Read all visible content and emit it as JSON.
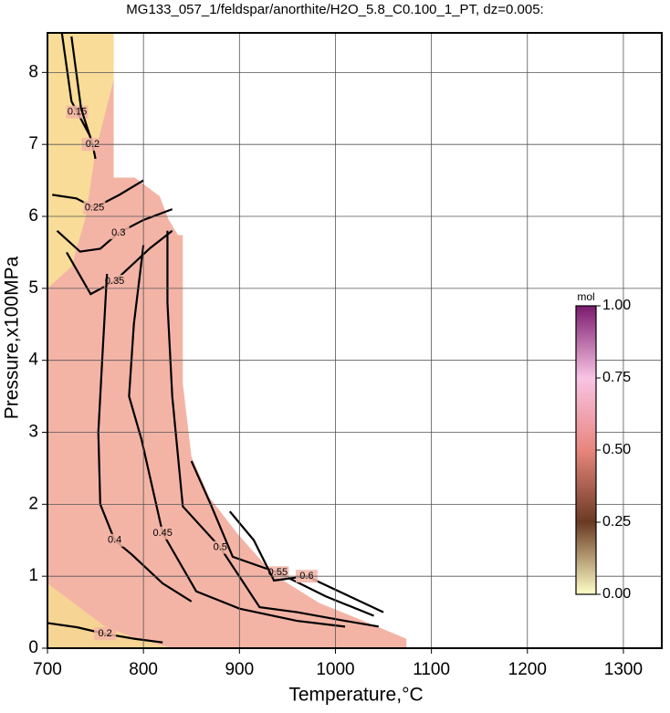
{
  "chart_data": {
    "type": "contour",
    "title": "MG133_057_1/feldspar/anorthite/H2O_5.8_C0.100_1_PT, dz=0.005:",
    "x_label": "Temperature,°C",
    "y_label": "Pressure,x100MPa",
    "xlim": [
      700,
      1340
    ],
    "ylim": [
      0,
      8.55
    ],
    "xticks": [
      700,
      800,
      900,
      1000,
      1100,
      1200,
      1300
    ],
    "yticks": [
      0,
      1,
      2,
      3,
      4,
      5,
      6,
      7,
      8
    ],
    "grid": true,
    "regions": [
      {
        "color": "#f3b4a6",
        "x": [
          700,
          769,
          769,
          791,
          817,
          826,
          836,
          841,
          841,
          850,
          869,
          898,
          936,
          983,
          1040,
          1074,
          1074,
          700
        ],
        "y": [
          8.55,
          8.55,
          6.54,
          6.54,
          6.28,
          5.96,
          5.74,
          5.74,
          3.68,
          2.66,
          2.09,
          1.59,
          1.02,
          0.63,
          0.32,
          0.13,
          0,
          0
        ]
      },
      {
        "color": "#f8dc98",
        "x": [
          700,
          769,
          769,
          750,
          740,
          725,
          700
        ],
        "y": [
          8.55,
          8.55,
          7.9,
          6.9,
          6.0,
          5.3,
          5.0
        ]
      },
      {
        "color": "#f6d494",
        "x": [
          700,
          730,
          760,
          790,
          830,
          700
        ],
        "y": [
          0.9,
          0.6,
          0.3,
          0.15,
          0,
          0
        ]
      }
    ],
    "contours": [
      {
        "level": 0.15,
        "x": [
          715,
          725,
          731,
          745
        ],
        "y": [
          8.55,
          7.6,
          7.45,
          7.1
        ]
      },
      {
        "level": 0.2,
        "x": [
          725,
          735,
          747,
          750
        ],
        "y": [
          8.5,
          7.5,
          7.0,
          6.8
        ]
      },
      {
        "level": 0.2,
        "x": [
          700,
          731,
          760,
          791,
          820
        ],
        "y": [
          0.35,
          0.29,
          0.2,
          0.13,
          0.08
        ]
      },
      {
        "level": 0.25,
        "x": [
          705,
          730,
          749,
          775,
          800
        ],
        "y": [
          6.3,
          6.25,
          6.12,
          6.3,
          6.5
        ]
      },
      {
        "level": 0.3,
        "x": [
          710,
          734,
          755,
          774,
          800,
          830
        ],
        "y": [
          5.8,
          5.51,
          5.55,
          5.77,
          5.95,
          6.1
        ]
      },
      {
        "level": 0.35,
        "x": [
          720,
          745,
          770,
          807,
          830
        ],
        "y": [
          5.5,
          4.92,
          5.1,
          5.56,
          5.8
        ]
      },
      {
        "level": 0.4,
        "x": [
          762,
          757,
          753,
          755,
          770,
          788,
          820,
          850
        ],
        "y": [
          5.2,
          4.0,
          3.0,
          2.0,
          1.5,
          1.3,
          0.9,
          0.65
        ]
      },
      {
        "level": 0.45,
        "x": [
          800,
          790,
          785,
          798,
          820,
          855,
          900,
          960,
          1010
        ],
        "y": [
          5.6,
          4.5,
          3.5,
          2.9,
          1.6,
          0.79,
          0.55,
          0.38,
          0.3
        ]
      },
      {
        "level": 0.5,
        "x": [
          825,
          825,
          830,
          841,
          880,
          921,
          960,
          1010,
          1045
        ],
        "y": [
          5.8,
          4.8,
          3.5,
          1.97,
          1.4,
          0.57,
          0.5,
          0.38,
          0.3
        ]
      },
      {
        "level": 0.55,
        "x": [
          850,
          870,
          893,
          940,
          990,
          1040
        ],
        "y": [
          2.6,
          2.0,
          1.27,
          1.05,
          0.72,
          0.45
        ]
      },
      {
        "level": 0.6,
        "x": [
          890,
          915,
          936,
          970,
          1010,
          1050
        ],
        "y": [
          1.9,
          1.5,
          0.94,
          1.0,
          0.75,
          0.5
        ]
      }
    ],
    "colorbar": {
      "label": "mol",
      "lim": [
        0,
        1
      ],
      "ticks": [
        {
          "value": 0,
          "label": "0.00"
        },
        {
          "value": 0.25,
          "label": "0.25"
        },
        {
          "value": 0.5,
          "label": "0.50"
        },
        {
          "value": 0.75,
          "label": "0.75"
        },
        {
          "value": 1,
          "label": "1.00"
        }
      ],
      "colors": [
        "#ffffc8",
        "#6a3a22",
        "#e8867e",
        "#f8c4e4",
        "#7a1a6e"
      ]
    }
  }
}
